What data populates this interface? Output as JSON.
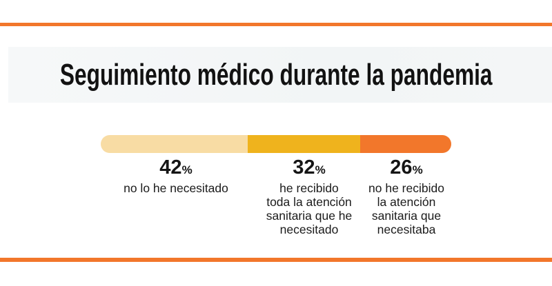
{
  "page": {
    "background": "#FFFFFF",
    "accent_orange": "#F2772B",
    "title_band_gray": "#F3F6F7"
  },
  "chart_data": {
    "type": "bar",
    "variant": "horizontal-stacked",
    "title": "Seguimiento médico durante la pandemia",
    "unit": "%",
    "total": 100,
    "legend_position": "below-bar",
    "grid": false,
    "segments": [
      {
        "value": 42,
        "label": "no lo he necesitado",
        "color": "#F8DCA4",
        "desc_lines": [
          "no lo he necesitado"
        ]
      },
      {
        "value": 32,
        "label": "he recibido toda la atención sanitaria que he necesitado",
        "color": "#EFB31D",
        "desc_lines": [
          "he recibido",
          "toda la atención",
          "sanitaria que he",
          "necesitado"
        ]
      },
      {
        "value": 26,
        "label": "no he recibido la atención sanitaria que necesitaba",
        "color": "#F2772B",
        "desc_lines": [
          "no he recibido",
          "la atención",
          "sanitaria que",
          "necesitaba"
        ]
      }
    ]
  }
}
